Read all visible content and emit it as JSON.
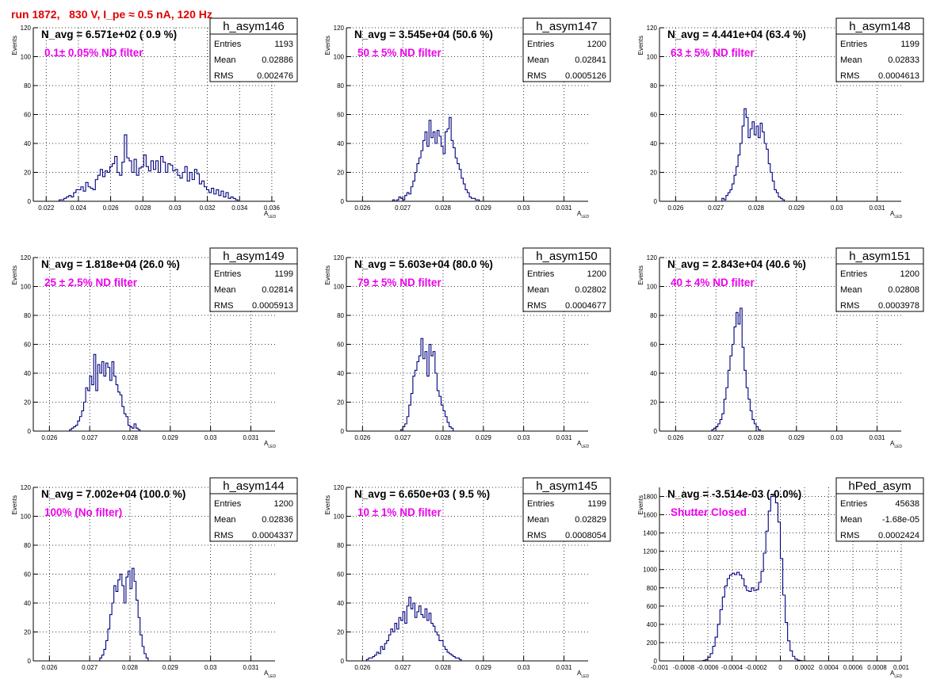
{
  "run_title": "run 1872,   830 V, I_pe ≈ 0.5 nA, 120 Hz",
  "ylabel": "Events",
  "xlabel_main": "A",
  "xlabel_sub": "LED",
  "stats_labels": [
    "Entries",
    "Mean",
    "RMS"
  ],
  "colors": {
    "title": "#e00000",
    "annotation": "#ee00ee",
    "hist": "#000080",
    "grid": "#000000"
  },
  "chart_data": [
    {
      "type": "bar",
      "name": "h_asym146",
      "header": "N_avg = 6.571e+02 ( 0.9 %)",
      "annotation": "0.1± 0.05% ND filter",
      "stats": [
        "1193",
        "0.02886",
        "0.002476"
      ],
      "xlim": [
        0.0212,
        0.0362
      ],
      "ylim": [
        0,
        120
      ],
      "xticks": [
        0.022,
        0.024,
        0.026,
        0.028,
        0.03,
        0.032,
        0.034,
        0.036
      ],
      "xticklabels": [
        "0.022",
        "0.024",
        "0.026",
        "0.028",
        "0.03",
        "0.032",
        "0.034",
        "0.036"
      ],
      "yticks": [
        0,
        20,
        40,
        60,
        80,
        100,
        120
      ],
      "x0": 0.0228,
      "bin_width": 0.00015,
      "values": [
        1,
        1,
        2,
        3,
        4,
        3,
        6,
        8,
        8,
        10,
        7,
        13,
        10,
        9,
        8,
        15,
        18,
        22,
        17,
        21,
        20,
        24,
        26,
        31,
        20,
        18,
        27,
        46,
        30,
        28,
        20,
        29,
        18,
        23,
        24,
        32,
        24,
        21,
        28,
        22,
        28,
        20,
        31,
        27,
        20,
        26,
        25,
        21,
        22,
        18,
        16,
        20,
        24,
        14,
        20,
        15,
        22,
        19,
        12,
        14,
        10,
        8,
        6,
        9,
        5,
        8,
        4,
        7,
        3,
        6,
        2,
        3,
        2,
        1
      ]
    },
    {
      "type": "bar",
      "name": "h_asym147",
      "header": "N_avg = 3.545e+04 (50.6 %)",
      "annotation": "50 ± 5% ND filter",
      "stats": [
        "1200",
        "0.02841",
        "0.0005126"
      ],
      "xlim": [
        0.0256,
        0.0316
      ],
      "ylim": [
        0,
        120
      ],
      "xticks": [
        0.026,
        0.027,
        0.028,
        0.029,
        0.03,
        0.031
      ],
      "xticklabels": [
        "0.026",
        "0.027",
        "0.028",
        "0.029",
        "0.03",
        "0.031"
      ],
      "yticks": [
        0,
        20,
        40,
        60,
        80,
        100,
        120
      ],
      "x0": 0.02675,
      "bin_width": 5e-05,
      "values": [
        1,
        0,
        1,
        3,
        2,
        1,
        4,
        6,
        5,
        10,
        14,
        20,
        26,
        30,
        35,
        42,
        48,
        38,
        56,
        44,
        48,
        40,
        49,
        45,
        38,
        33,
        48,
        50,
        58,
        42,
        37,
        30,
        26,
        22,
        16,
        12,
        8,
        6,
        3,
        2,
        2,
        1,
        1
      ]
    },
    {
      "type": "bar",
      "name": "h_asym148",
      "header": "N_avg = 4.441e+04 (63.4 %)",
      "annotation": "63 ± 5% ND filter",
      "stats": [
        "1199",
        "0.02833",
        "0.0004613"
      ],
      "xlim": [
        0.0256,
        0.0316
      ],
      "ylim": [
        0,
        120
      ],
      "xticks": [
        0.026,
        0.027,
        0.028,
        0.029,
        0.03,
        0.031
      ],
      "xticklabels": [
        "0.026",
        "0.027",
        "0.028",
        "0.029",
        "0.03",
        "0.031"
      ],
      "yticks": [
        0,
        20,
        40,
        60,
        80,
        100,
        120
      ],
      "x0": 0.02715,
      "bin_width": 5e-05,
      "values": [
        2,
        1,
        4,
        6,
        8,
        12,
        18,
        24,
        32,
        40,
        52,
        64,
        58,
        44,
        50,
        55,
        46,
        52,
        44,
        54,
        48,
        40,
        36,
        26,
        20,
        14,
        8,
        6,
        3,
        2,
        1
      ]
    },
    {
      "type": "bar",
      "name": "h_asym149",
      "header": "N_avg = 1.818e+04 (26.0 %)",
      "annotation": "25 ± 2.5% ND filter",
      "stats": [
        "1199",
        "0.02814",
        "0.0005913"
      ],
      "xlim": [
        0.0256,
        0.0316
      ],
      "ylim": [
        0,
        120
      ],
      "xticks": [
        0.026,
        0.027,
        0.028,
        0.029,
        0.03,
        0.031
      ],
      "xticklabels": [
        "0.026",
        "0.027",
        "0.028",
        "0.029",
        "0.03",
        "0.031"
      ],
      "yticks": [
        0,
        20,
        40,
        60,
        80,
        100,
        120
      ],
      "x0": 0.0265,
      "bin_width": 5e-05,
      "values": [
        1,
        2,
        3,
        4,
        7,
        10,
        14,
        20,
        30,
        28,
        38,
        32,
        53,
        28,
        46,
        40,
        48,
        38,
        47,
        44,
        35,
        48,
        38,
        32,
        27,
        25,
        17,
        12,
        10,
        4,
        3,
        2,
        5,
        2,
        1
      ]
    },
    {
      "type": "bar",
      "name": "h_asym150",
      "header": "N_avg = 5.603e+04 (80.0 %)",
      "annotation": "79 ± 5% ND filter",
      "stats": [
        "1200",
        "0.02802",
        "0.0004677"
      ],
      "xlim": [
        0.0256,
        0.0316
      ],
      "ylim": [
        0,
        120
      ],
      "xticks": [
        0.026,
        0.027,
        0.028,
        0.029,
        0.03,
        0.031
      ],
      "xticklabels": [
        "0.026",
        "0.027",
        "0.028",
        "0.029",
        "0.03",
        "0.031"
      ],
      "yticks": [
        0,
        20,
        40,
        60,
        80,
        100,
        120
      ],
      "x0": 0.02695,
      "bin_width": 5e-05,
      "values": [
        1,
        3,
        5,
        10,
        18,
        26,
        38,
        42,
        48,
        52,
        64,
        50,
        55,
        38,
        60,
        52,
        55,
        40,
        28,
        24,
        18,
        14,
        10,
        6,
        3,
        2
      ]
    },
    {
      "type": "bar",
      "name": "h_asym151",
      "header": "N_avg = 2.843e+04 (40.6 %)",
      "annotation": "40 ± 4% ND filter",
      "stats": [
        "1200",
        "0.02808",
        "0.0003978"
      ],
      "xlim": [
        0.0256,
        0.0316
      ],
      "ylim": [
        0,
        120
      ],
      "xticks": [
        0.026,
        0.027,
        0.028,
        0.029,
        0.03,
        0.031
      ],
      "xticklabels": [
        "0.026",
        "0.027",
        "0.028",
        "0.029",
        "0.03",
        "0.031"
      ],
      "yticks": [
        0,
        20,
        40,
        60,
        80,
        100,
        120
      ],
      "x0": 0.0269,
      "bin_width": 5e-05,
      "values": [
        1,
        2,
        3,
        5,
        8,
        12,
        22,
        30,
        42,
        52,
        60,
        72,
        82,
        74,
        85,
        58,
        42,
        30,
        22,
        14,
        8,
        5,
        3,
        1
      ]
    },
    {
      "type": "bar",
      "name": "h_asym144",
      "header": "N_avg = 7.002e+04 (100.0 %)",
      "annotation": "100% (No filter)",
      "stats": [
        "1200",
        "0.02836",
        "0.0004337"
      ],
      "xlim": [
        0.0256,
        0.0316
      ],
      "ylim": [
        0,
        120
      ],
      "xticks": [
        0.026,
        0.027,
        0.028,
        0.029,
        0.03,
        0.031
      ],
      "xticklabels": [
        "0.026",
        "0.027",
        "0.028",
        "0.029",
        "0.03",
        "0.031"
      ],
      "yticks": [
        0,
        20,
        40,
        60,
        80,
        100,
        120
      ],
      "x0": 0.02725,
      "bin_width": 5e-05,
      "values": [
        2,
        4,
        8,
        14,
        22,
        32,
        40,
        52,
        48,
        56,
        60,
        52,
        40,
        58,
        62,
        50,
        64,
        55,
        42,
        30,
        18,
        10,
        5,
        2
      ]
    },
    {
      "type": "bar",
      "name": "h_asym145",
      "header": "N_avg = 6.650e+03 ( 9.5 %)",
      "annotation": "10 ± 1% ND filter",
      "stats": [
        "1199",
        "0.02829",
        "0.0008054"
      ],
      "xlim": [
        0.0256,
        0.0316
      ],
      "ylim": [
        0,
        120
      ],
      "xticks": [
        0.026,
        0.027,
        0.028,
        0.029,
        0.03,
        0.031
      ],
      "xticklabels": [
        "0.026",
        "0.027",
        "0.028",
        "0.029",
        "0.03",
        "0.031"
      ],
      "yticks": [
        0,
        20,
        40,
        60,
        80,
        100,
        120
      ],
      "x0": 0.0261,
      "bin_width": 5e-05,
      "values": [
        1,
        2,
        2,
        3,
        4,
        6,
        5,
        10,
        8,
        12,
        14,
        18,
        22,
        20,
        26,
        22,
        30,
        28,
        34,
        26,
        38,
        44,
        36,
        40,
        30,
        34,
        38,
        32,
        30,
        36,
        28,
        33,
        26,
        24,
        20,
        18,
        14,
        14,
        10,
        8,
        6,
        5,
        4,
        3,
        2,
        2,
        1
      ]
    },
    {
      "type": "bar",
      "name": "hPed_asym",
      "header": "N_avg = -3.514e-03 (-0.0%)",
      "annotation": "Shutter Closed",
      "stats": [
        "45638",
        "-1.68e-05",
        "0.0002424"
      ],
      "xlim": [
        -0.001,
        0.001
      ],
      "ylim": [
        0,
        1900
      ],
      "xticks": [
        -0.001,
        -0.0008,
        -0.0006,
        -0.0004,
        -0.0002,
        0,
        0.0002,
        0.0004,
        0.0006,
        0.0008,
        0.001
      ],
      "xticklabels": [
        "-0.001",
        "-0.0008",
        "-0.0006",
        "-0.0004",
        "-0.0002",
        "0",
        "0.0002",
        "0.0004",
        "0.0006",
        "0.0008",
        "0.001"
      ],
      "yticks": [
        0,
        200,
        400,
        600,
        800,
        1000,
        1200,
        1400,
        1600,
        1800
      ],
      "x0": -0.00064,
      "bin_width": 2e-05,
      "values": [
        5,
        15,
        40,
        80,
        160,
        260,
        400,
        560,
        700,
        820,
        900,
        940,
        960,
        945,
        970,
        940,
        900,
        820,
        770,
        760,
        800,
        770,
        780,
        860,
        980,
        1180,
        1420,
        1640,
        1800,
        1820,
        1730,
        1520,
        1120,
        720,
        420,
        220,
        110,
        50,
        20,
        8,
        3
      ]
    }
  ]
}
